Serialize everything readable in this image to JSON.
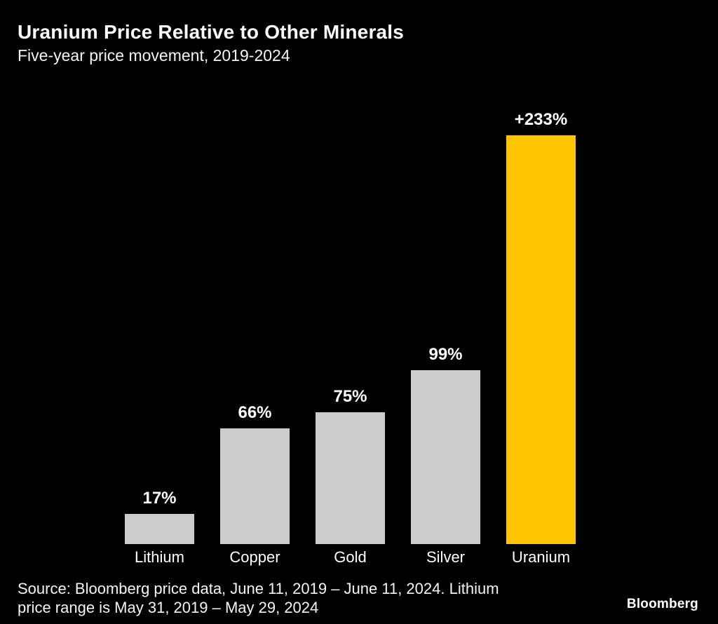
{
  "header": {
    "title": "Uranium Price Relative to Other Minerals",
    "subtitle": "Five-year price movement, 2019-2024"
  },
  "chart_data": {
    "type": "bar",
    "title": "Uranium Price Relative to Other Minerals",
    "subtitle": "Five-year price movement, 2019-2024",
    "categories": [
      "Lithium",
      "Copper",
      "Gold",
      "Silver",
      "Uranium"
    ],
    "values": [
      17,
      66,
      75,
      99,
      233
    ],
    "value_labels": [
      "17%",
      "66%",
      "75%",
      "99%",
      "+233%"
    ],
    "bar_colors": [
      "#cccccc",
      "#cccccc",
      "#cccccc",
      "#cccccc",
      "#ffc400"
    ],
    "highlight_category": "Uranium",
    "xlabel": "",
    "ylabel": "",
    "ylim": [
      0,
      233
    ],
    "grid": false,
    "legend": "none",
    "value_label_position": "above-bar",
    "background": "#000000"
  },
  "colors": {
    "background": "#000000",
    "bar_default": "#cccccc",
    "bar_highlight": "#ffc400",
    "text": "#ffffff"
  },
  "footer": {
    "source_line1": "Source: Bloomberg price data, June 11, 2019 – June 11, 2024. Lithium",
    "source_line2": "price range is May 31, 2019 – May 29, 2024",
    "brand": "Bloomberg"
  }
}
